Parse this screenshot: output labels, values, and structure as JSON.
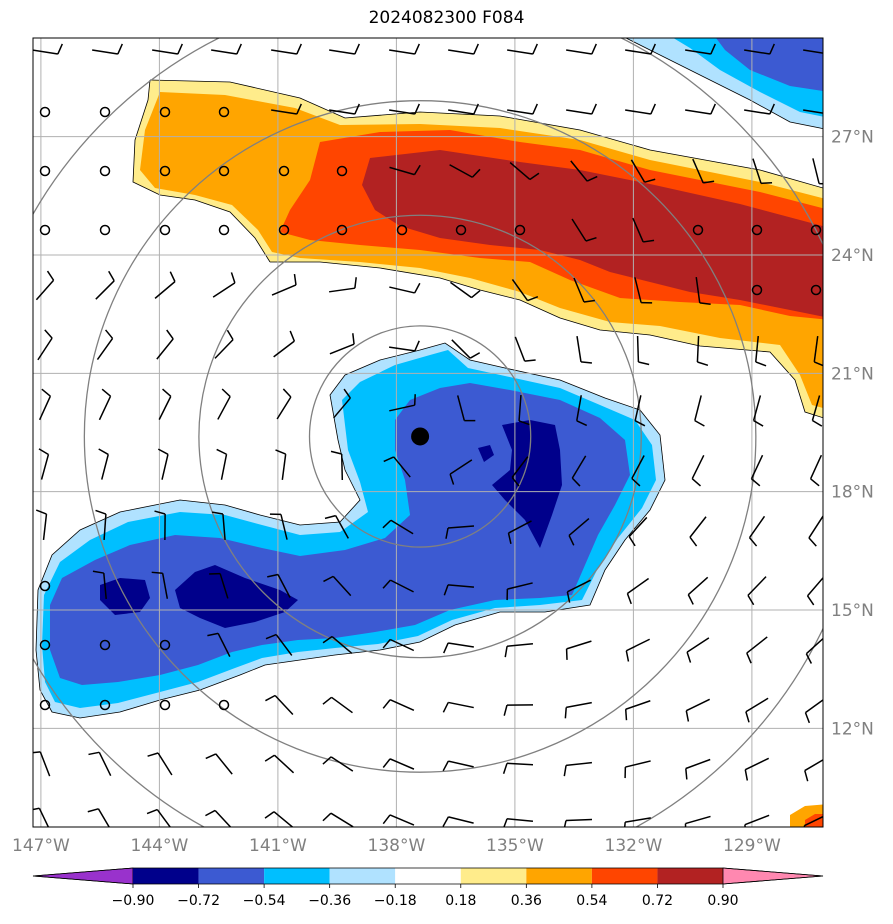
{
  "title": "2024082300 F084",
  "map": {
    "lon_range": [
      -147.2,
      -127.2
    ],
    "lat_range": [
      9.5,
      29.5
    ],
    "x_ticks": [
      {
        "lon": -147,
        "label": "147°W"
      },
      {
        "lon": -144,
        "label": "144°W"
      },
      {
        "lon": -141,
        "label": "141°W"
      },
      {
        "lon": -138,
        "label": "138°W"
      },
      {
        "lon": -135,
        "label": "135°W"
      },
      {
        "lon": -132,
        "label": "132°W"
      },
      {
        "lon": -129,
        "label": "129°W"
      }
    ],
    "y_ticks": [
      {
        "lat": 27,
        "label": "27°N"
      },
      {
        "lat": 24,
        "label": "24°N"
      },
      {
        "lat": 21,
        "label": "21°N"
      },
      {
        "lat": 18,
        "label": "18°N"
      },
      {
        "lat": 15,
        "label": "15°N"
      },
      {
        "lat": 12,
        "label": "12°N"
      }
    ],
    "gridline_color": "#b0b0b0",
    "storm_center": {
      "lon": -137.4,
      "lat": 19.4
    },
    "range_rings_deg": [
      2.8,
      5.6,
      8.5,
      11.3
    ]
  },
  "colorbar": {
    "colors": [
      "#9932CC",
      "#00008B",
      "#3C5AD2",
      "#00BFFF",
      "#B0E2FF",
      "#FFFFFF",
      "#FFEC8B",
      "#FFA500",
      "#FF4500",
      "#B22222",
      "#FF88B0"
    ],
    "labels": [
      "−0.90",
      "−0.72",
      "−0.54",
      "−0.36",
      "−0.18",
      "0.18",
      "0.36",
      "0.54",
      "0.72",
      "0.90"
    ]
  }
}
